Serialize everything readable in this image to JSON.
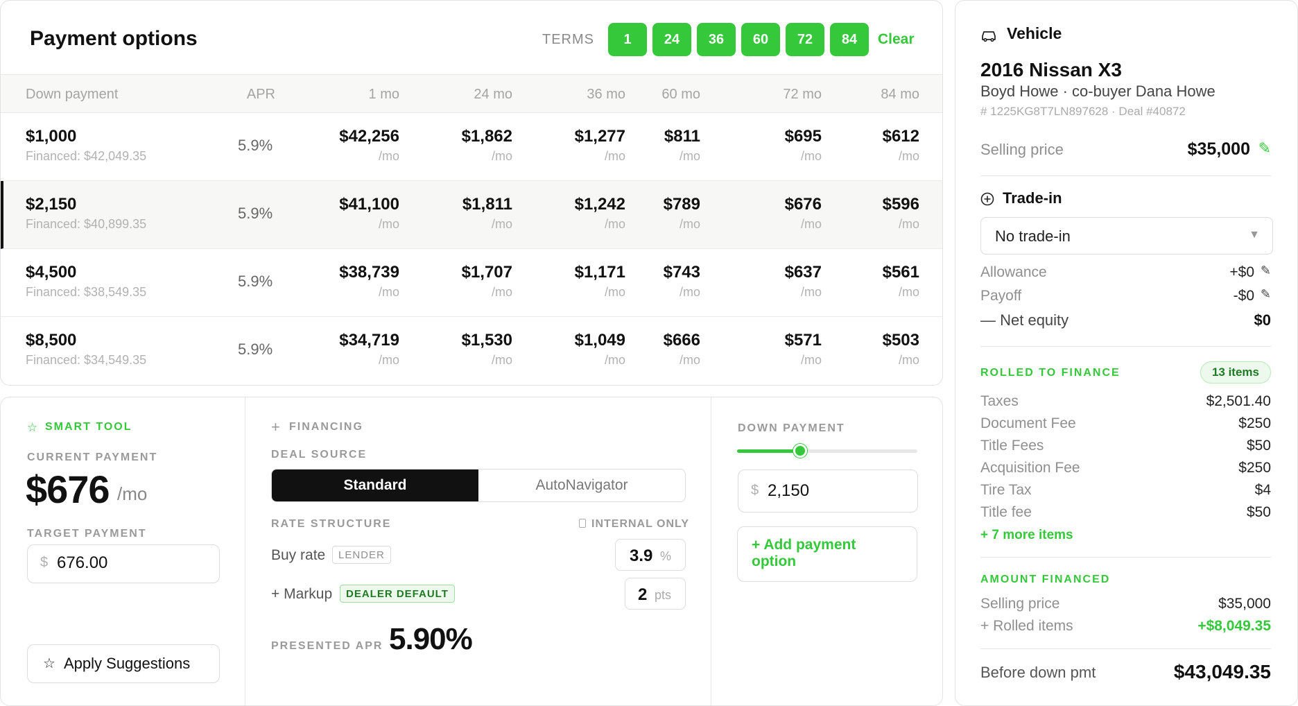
{
  "payment_options": {
    "title": "Payment options",
    "terms_label": "TERMS",
    "terms": [
      "1",
      "24",
      "36",
      "60",
      "72",
      "84"
    ],
    "clear_label": "Clear",
    "columns": [
      "Down payment",
      "APR",
      "1 mo",
      "24 mo",
      "36 mo",
      "60 mo",
      "72 mo",
      "84 mo"
    ],
    "per_mo": "/mo",
    "rows": [
      {
        "down": "$1,000",
        "financed": "Financed: $42,049.35",
        "apr": "5.9%",
        "payments": [
          "$42,256",
          "$1,862",
          "$1,277",
          "$811",
          "$695",
          "$612"
        ]
      },
      {
        "down": "$2,150",
        "financed": "Financed: $40,899.35",
        "apr": "5.9%",
        "payments": [
          "$41,100",
          "$1,811",
          "$1,242",
          "$789",
          "$676",
          "$596"
        ]
      },
      {
        "down": "$4,500",
        "financed": "Financed: $38,549.35",
        "apr": "5.9%",
        "payments": [
          "$38,739",
          "$1,707",
          "$1,171",
          "$743",
          "$637",
          "$561"
        ]
      },
      {
        "down": "$8,500",
        "financed": "Financed: $34,549.35",
        "apr": "5.9%",
        "payments": [
          "$34,719",
          "$1,530",
          "$1,049",
          "$666",
          "$571",
          "$503"
        ]
      }
    ]
  },
  "smart_tool": {
    "eyebrow": "SMART TOOL",
    "current_label": "CURRENT PAYMENT",
    "current_value": "$676",
    "current_unit": "/mo",
    "target_label": "TARGET PAYMENT",
    "currency": "$",
    "target_value": "676.00",
    "apply_label": "Apply Suggestions",
    "star_icon": "☆"
  },
  "financing": {
    "eyebrow": "FINANCING",
    "deal_source_label": "DEAL SOURCE",
    "sources": [
      "Standard",
      "AutoNavigator"
    ],
    "rate_structure_label": "RATE STRUCTURE",
    "internal_label": "INTERNAL ONLY",
    "buy_rate_label": "Buy rate",
    "buy_rate_tag": "LENDER",
    "buy_rate_value": "3.9",
    "buy_rate_unit": "%",
    "markup_label": "+ Markup",
    "markup_tag": "DEALER DEFAULT",
    "markup_value": "2",
    "markup_unit": "pts",
    "presented_label": "PRESENTED APR",
    "presented_value": "5.90%"
  },
  "down_payment": {
    "eyebrow": "DOWN PAYMENT",
    "slider_fraction": 0.35,
    "currency": "$",
    "value": "2,150",
    "add_label": "+ Add payment option"
  },
  "vehicle": {
    "title": "Vehicle",
    "name": "2016 Nissan X3",
    "buyer": "Boyd Howe · co-buyer Dana Howe",
    "vin": "# 1225KG8T7LN897628 · Deal #40872",
    "selling_label": "Selling price",
    "selling_value": "$35,000",
    "edit_icon": "✎",
    "trade_title": "Trade-in",
    "trade_select": "No trade-in",
    "allowance_label": "Allowance",
    "allowance_value": "+$0",
    "payoff_label": "Payoff",
    "payoff_value": "-$0",
    "equity_label": "— Net equity",
    "equity_value": "$0",
    "rolled_title": "ROLLED TO FINANCE",
    "rolled_badge": "13 items",
    "rolled_items": [
      {
        "label": "Taxes",
        "value": "$2,501.40"
      },
      {
        "label": "Document Fee",
        "value": "$250"
      },
      {
        "label": "Title Fees",
        "value": "$50"
      },
      {
        "label": "Acquisition Fee",
        "value": "$250"
      },
      {
        "label": "Tire Tax",
        "value": "$4"
      },
      {
        "label": "Title fee",
        "value": "$50"
      }
    ],
    "more_items": "+ 7 more items",
    "financed_title": "AMOUNT FINANCED",
    "fin_selling_label": "Selling price",
    "fin_selling_value": "$35,000",
    "fin_rolled_label": "+ Rolled items",
    "fin_rolled_value": "+$8,049.35",
    "before_label": "Before down pmt",
    "before_value": "$43,049.35"
  }
}
